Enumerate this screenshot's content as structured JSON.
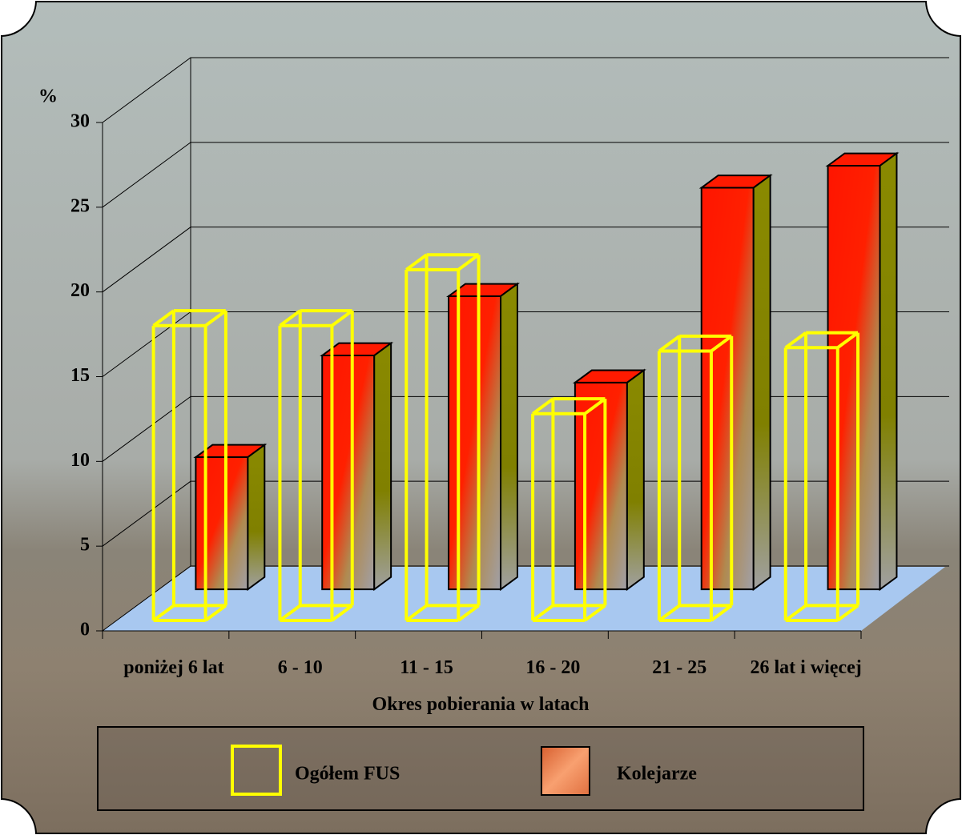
{
  "chart_data": {
    "type": "bar3d",
    "y_label": "%",
    "x_label": "Okres pobierania w latach",
    "categories": [
      "poniżej 6 lat",
      "6 - 10",
      "11 - 15",
      "16 - 20",
      "21 - 25",
      "26 lat i więcej"
    ],
    "series": [
      {
        "name": "Ogółem FUS",
        "color": "#ffff00",
        "values": [
          17.4,
          17.4,
          20.7,
          12.2,
          15.9,
          16.1
        ]
      },
      {
        "name": "Kolejarze",
        "color": "#ff1a00",
        "values": [
          7.8,
          13.8,
          17.3,
          12.2,
          23.7,
          25.0
        ]
      }
    ],
    "ylim": [
      0,
      30
    ],
    "yticks": [
      0,
      5,
      10,
      15,
      20,
      25,
      30
    ],
    "grid": true
  }
}
